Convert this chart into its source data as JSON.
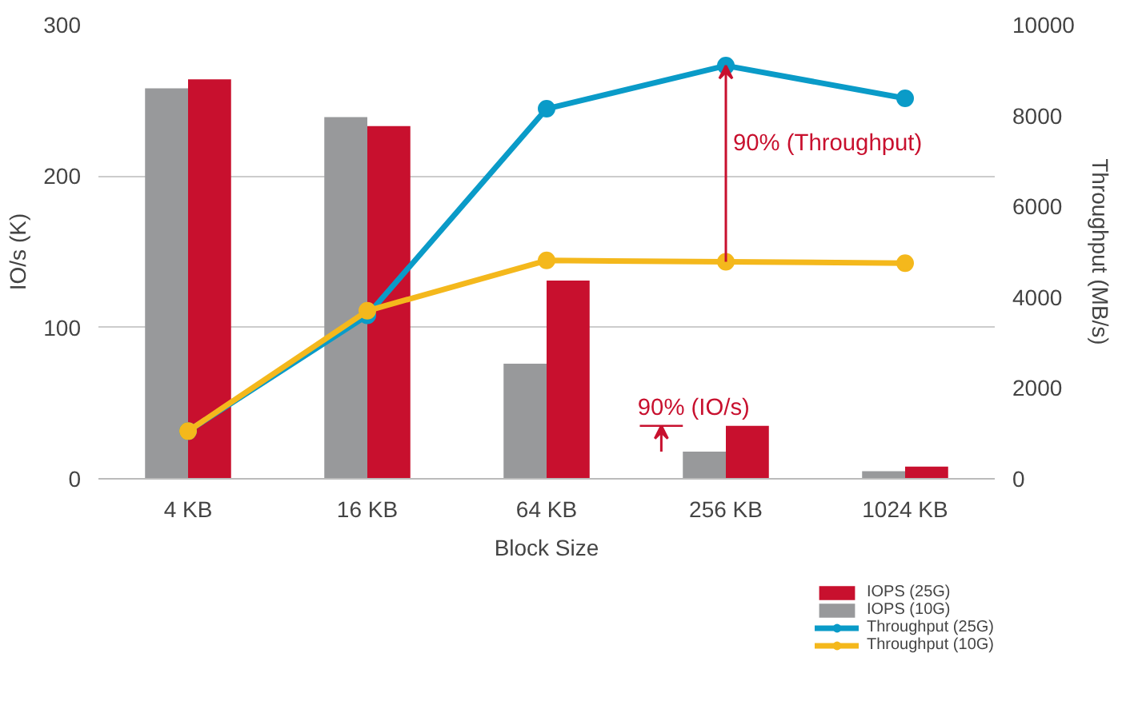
{
  "chart_data": {
    "type": "bar",
    "xlabel": "Block Size",
    "ylabel": "IO/s (K)",
    "y2label": "Throughput (MB/s)",
    "categories": [
      "4 KB",
      "16 KB",
      "64 KB",
      "256 KB",
      "1024 KB"
    ],
    "series": [
      {
        "name": "IOPS (25G)",
        "color": "#c8102e",
        "values": [
          264,
          233,
          131,
          35,
          8
        ]
      },
      {
        "name": "IOPS (10G)",
        "color": "#98999b",
        "values": [
          258,
          239,
          76,
          18,
          5
        ]
      },
      {
        "name": "Throughput (25G)",
        "color": "#0a9bc8",
        "type": "line",
        "axis": "y2",
        "values": [
          1050,
          3600,
          8150,
          9100,
          8380
        ]
      },
      {
        "name": "Throughput (10G)",
        "color": "#f4b81c",
        "type": "line",
        "axis": "y2",
        "values": [
          1050,
          3700,
          4810,
          4780,
          4750
        ]
      }
    ],
    "ylim": [
      0,
      300
    ],
    "yticks": [
      0,
      100,
      200,
      300
    ],
    "y2lim": [
      0,
      10000
    ],
    "y2ticks": [
      0,
      2000,
      4000,
      6000,
      8000,
      10000
    ],
    "grid": "y",
    "legend": "bottom right",
    "marker": "circle",
    "annotations": [
      "90% (Throughput)",
      "90% (IO/s)"
    ]
  }
}
